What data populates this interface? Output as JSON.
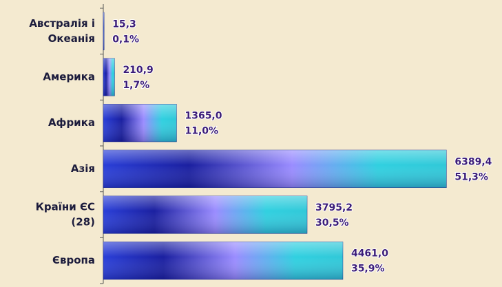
{
  "chart_data": {
    "type": "bar",
    "categories": [
      [
        "Австралія і",
        "Океанія"
      ],
      [
        "Америка"
      ],
      [
        "Африка"
      ],
      [
        "Азія"
      ],
      [
        "Країни ЄС",
        "(28)"
      ],
      [
        "Європа"
      ]
    ],
    "values": [
      15.3,
      210.9,
      1365.0,
      6389.4,
      3795.2,
      4461.0
    ],
    "value_labels": [
      "15,3",
      "210,9",
      "1365,0",
      "6389,4",
      "3795,2",
      "4461,0"
    ],
    "share_labels": [
      "0,1%",
      "1,7%",
      "11,0%",
      "51,3%",
      "30,5%",
      "35,9%"
    ],
    "color": "#2a3fd8",
    "xlim": [
      0,
      7000
    ]
  }
}
